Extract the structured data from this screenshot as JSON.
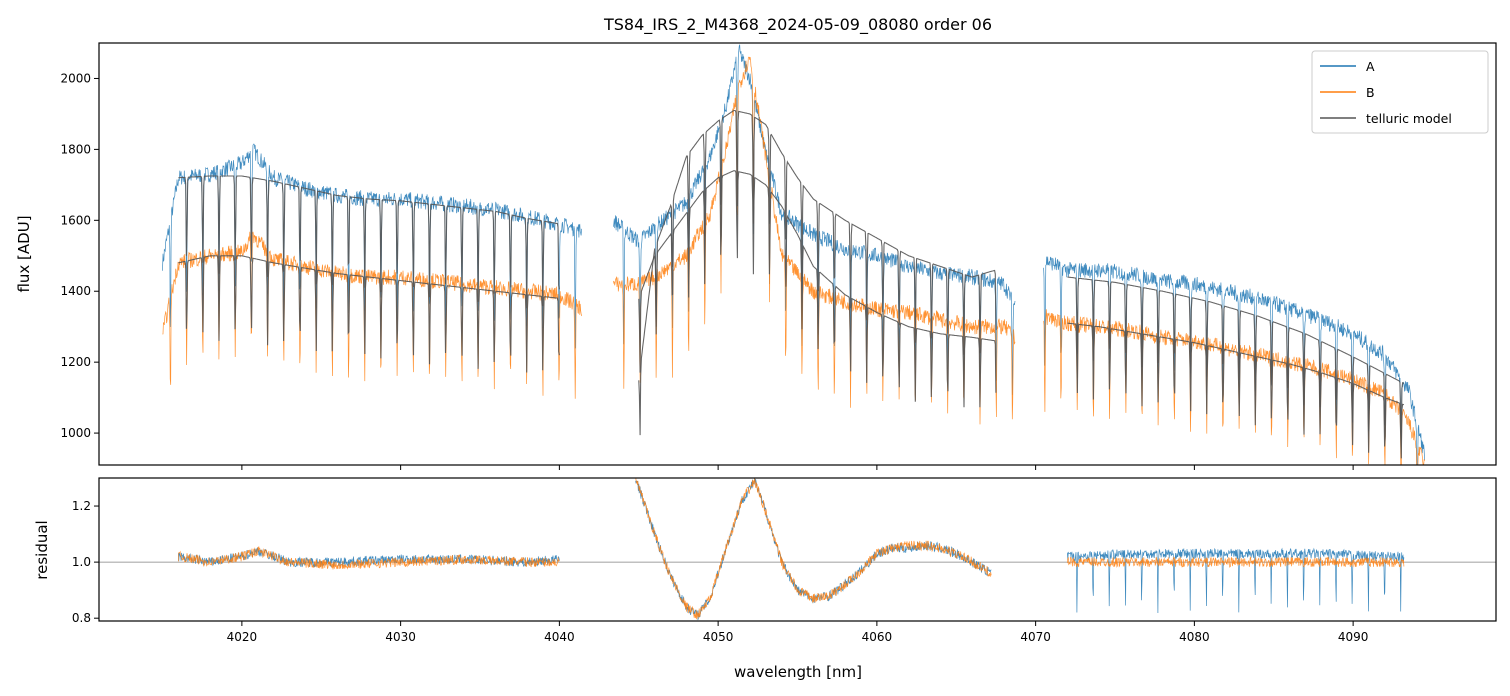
{
  "chart_data": [
    {
      "type": "line",
      "title": "TS84_IRS_2_M4368_2024-05-09_08080  order 06",
      "xlabel": "",
      "ylabel": "flux [ADU]",
      "xlim": [
        4011,
        4099
      ],
      "ylim": [
        910,
        2100
      ],
      "x_ticks": [
        4020,
        4030,
        4040,
        4050,
        4060,
        4070,
        4080,
        4090
      ],
      "y_ticks": [
        1000,
        1200,
        1400,
        1600,
        1800,
        2000
      ],
      "y_tick_labels": [
        "1000",
        "1200",
        "1400",
        "1600",
        "1800",
        "2000"
      ],
      "legend": {
        "placement": "top-right",
        "entries": [
          "A",
          "B",
          "telluric model"
        ]
      },
      "series": [
        {
          "name": "A",
          "color": "#1f77b4",
          "segments": [
            {
              "x": [
                4015,
                4016,
                4018,
                4020,
                4020.7,
                4022,
                4024,
                4026,
                4028,
                4030,
                4032,
                4034,
                4036,
                4038,
                4040,
                4041.4
              ],
              "y": [
                1480,
                1720,
                1730,
                1760,
                1800,
                1720,
                1690,
                1670,
                1660,
                1660,
                1650,
                1640,
                1630,
                1610,
                1590,
                1570
              ]
            },
            {
              "x": [
                4043.4,
                4045,
                4046,
                4048,
                4049.5,
                4050.5,
                4051.3,
                4052,
                4053,
                4054,
                4056,
                4058,
                4060,
                4062,
                4064,
                4066,
                4068,
                4068.7
              ],
              "y": [
                1600,
                1540,
                1580,
                1650,
                1780,
                1920,
                2080,
                2000,
                1790,
                1620,
                1560,
                1520,
                1500,
                1470,
                1450,
                1440,
                1420,
                1360
              ]
            },
            {
              "x": [
                4070.5,
                4072,
                4074,
                4076,
                4078,
                4080,
                4082,
                4084,
                4086,
                4088,
                4090,
                4092,
                4093.5,
                4094.5
              ],
              "y": [
                1490,
                1460,
                1460,
                1450,
                1430,
                1420,
                1400,
                1380,
                1350,
                1320,
                1280,
                1220,
                1120,
                940
              ]
            }
          ]
        },
        {
          "name": "B",
          "color": "#ff7f0e",
          "segments": [
            {
              "x": [
                4015,
                4016,
                4018,
                4020,
                4020.7,
                4022,
                4024,
                4026,
                4028,
                4030,
                4032,
                4034,
                4036,
                4038,
                4040,
                4041.4
              ],
              "y": [
                1280,
                1480,
                1500,
                1510,
                1560,
                1490,
                1470,
                1450,
                1440,
                1440,
                1430,
                1420,
                1410,
                1400,
                1390,
                1350
              ]
            },
            {
              "x": [
                4043.4,
                4045,
                4046,
                4048,
                4049.5,
                4050.5,
                4051.3,
                4052,
                4053,
                4054,
                4056,
                4058,
                4060,
                4062,
                4064,
                4066,
                4068,
                4068.7
              ],
              "y": [
                1420,
                1420,
                1440,
                1500,
                1620,
                1800,
                1980,
                2060,
                1780,
                1500,
                1400,
                1370,
                1350,
                1340,
                1320,
                1300,
                1300,
                1270
              ]
            },
            {
              "x": [
                4070.5,
                4072,
                4074,
                4076,
                4078,
                4080,
                4082,
                4084,
                4086,
                4088,
                4090,
                4092,
                4093.5,
                4094.5
              ],
              "y": [
                1330,
                1310,
                1300,
                1290,
                1270,
                1260,
                1240,
                1220,
                1200,
                1180,
                1150,
                1110,
                1030,
                910
              ]
            }
          ]
        },
        {
          "name": "telluric model",
          "color": "#555555",
          "segments": [
            {
              "x": [
                4016,
                4018,
                4020,
                4022,
                4024,
                4026,
                4028,
                4030,
                4032,
                4034,
                4036,
                4038,
                4040
              ],
              "y": [
                1720,
                1725,
                1725,
                1710,
                1690,
                1670,
                1660,
                1655,
                1645,
                1635,
                1625,
                1605,
                1590
              ]
            },
            {
              "x": [
                4016,
                4018,
                4020,
                4022,
                4024,
                4026,
                4028,
                4030,
                4032,
                4034,
                4036,
                4038,
                4040
              ],
              "y": [
                1480,
                1500,
                1500,
                1480,
                1465,
                1450,
                1440,
                1430,
                1420,
                1410,
                1400,
                1390,
                1380
              ]
            },
            {
              "x": [
                4045,
                4046,
                4047,
                4048,
                4049,
                4050,
                4051,
                4052,
                4053,
                4054,
                4055,
                4056,
                4058,
                4060,
                4062,
                4064,
                4066,
                4067.5
              ],
              "y": [
                1150,
                1520,
                1640,
                1780,
                1840,
                1880,
                1910,
                1900,
                1870,
                1790,
                1720,
                1660,
                1600,
                1550,
                1500,
                1470,
                1440,
                1460
              ]
            },
            {
              "x": [
                4045,
                4046,
                4047,
                4048,
                4049,
                4050,
                4051,
                4052,
                4053,
                4054,
                4055,
                4056,
                4058,
                4060,
                4062,
                4064,
                4066,
                4067.5
              ],
              "y": [
                1380,
                1500,
                1560,
                1620,
                1680,
                1720,
                1740,
                1730,
                1700,
                1640,
                1560,
                1470,
                1390,
                1340,
                1300,
                1280,
                1270,
                1260
              ]
            },
            {
              "x": [
                4072,
                4075,
                4078,
                4081,
                4084,
                4087,
                4090,
                4093.2
              ],
              "y": [
                1440,
                1425,
                1400,
                1370,
                1330,
                1280,
                1215,
                1140
              ]
            },
            {
              "x": [
                4072,
                4074,
                4076,
                4078,
                4080,
                4082,
                4084,
                4086,
                4088,
                4090,
                4092,
                4093.2
              ],
              "y": [
                1310,
                1300,
                1285,
                1270,
                1255,
                1235,
                1215,
                1195,
                1170,
                1140,
                1100,
                1080
              ]
            }
          ]
        }
      ]
    },
    {
      "type": "line",
      "title": "",
      "xlabel": "wavelength [nm]",
      "ylabel": "residual",
      "xlim": [
        4011,
        4099
      ],
      "ylim": [
        0.79,
        1.3
      ],
      "x_ticks": [
        4020,
        4030,
        4040,
        4050,
        4060,
        4070,
        4080,
        4090
      ],
      "x_tick_labels": [
        "4020",
        "4030",
        "4040",
        "4050",
        "4060",
        "4070",
        "4080",
        "4090"
      ],
      "y_ticks": [
        0.8,
        1.0,
        1.2
      ],
      "y_tick_labels": [
        "0.8",
        "1.0",
        "1.2"
      ],
      "reference_line": 1.0,
      "series": [
        {
          "name": "A",
          "color": "#1f77b4",
          "segments": [
            {
              "x": [
                4016,
                4018,
                4020,
                4021,
                4023,
                4026,
                4030,
                4034,
                4038,
                4040
              ],
              "y": [
                1.02,
                1.0,
                1.02,
                1.04,
                1.0,
                1.0,
                1.01,
                1.01,
                1.0,
                1.01
              ]
            },
            {
              "x": [
                4044.8,
                4046,
                4047,
                4048,
                4048.7,
                4049.5,
                4050.5,
                4051.5,
                4052.3,
                4053,
                4054,
                4055,
                4056,
                4057,
                4058,
                4059,
                4060,
                4061,
                4062,
                4063,
                4064,
                4065,
                4066,
                4067.2
              ],
              "y": [
                1.3,
                1.1,
                0.95,
                0.84,
                0.81,
                0.87,
                1.05,
                1.22,
                1.29,
                1.18,
                1.0,
                0.9,
                0.87,
                0.88,
                0.92,
                0.97,
                1.03,
                1.05,
                1.05,
                1.06,
                1.05,
                1.03,
                1.0,
                0.96
              ]
            },
            {
              "x": [
                4072,
                4076,
                4080,
                4084,
                4088,
                4092,
                4093.2
              ],
              "y": [
                1.02,
                1.03,
                1.03,
                1.03,
                1.03,
                1.02,
                1.02
              ]
            }
          ]
        },
        {
          "name": "B",
          "color": "#ff7f0e",
          "segments": [
            {
              "x": [
                4016,
                4018,
                4020,
                4021,
                4023,
                4026,
                4030,
                4034,
                4038,
                4040
              ],
              "y": [
                1.02,
                1.0,
                1.02,
                1.04,
                1.0,
                0.99,
                1.0,
                1.01,
                1.0,
                1.0
              ]
            },
            {
              "x": [
                4044.8,
                4046,
                4047,
                4048,
                4048.7,
                4049.5,
                4050.5,
                4051.5,
                4052.3,
                4053,
                4054,
                4055,
                4056,
                4057,
                4058,
                4059,
                4060,
                4061,
                4062,
                4063,
                4064,
                4065,
                4066,
                4067.2
              ],
              "y": [
                1.3,
                1.1,
                0.95,
                0.84,
                0.81,
                0.87,
                1.05,
                1.22,
                1.29,
                1.18,
                1.0,
                0.9,
                0.87,
                0.88,
                0.92,
                0.97,
                1.03,
                1.05,
                1.06,
                1.06,
                1.05,
                1.03,
                1.0,
                0.96
              ]
            },
            {
              "x": [
                4072,
                4076,
                4080,
                4084,
                4088,
                4092,
                4093.2
              ],
              "y": [
                1.0,
                1.0,
                1.0,
                1.0,
                1.0,
                1.0,
                1.0
              ]
            }
          ]
        }
      ]
    }
  ]
}
